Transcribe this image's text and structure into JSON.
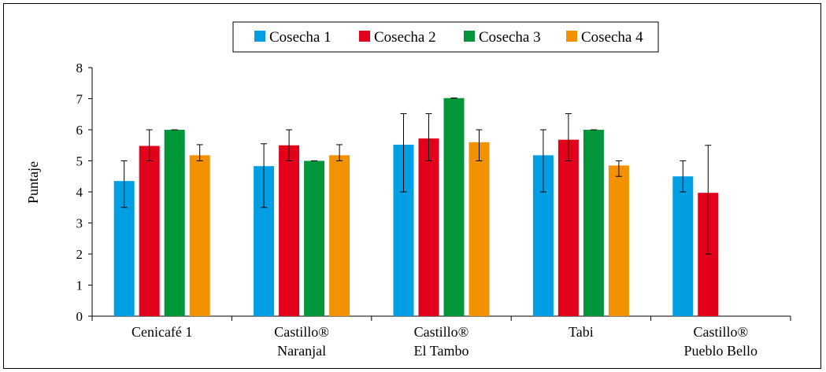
{
  "chart_data": {
    "type": "bar",
    "ylabel": "Puntaje",
    "xlabel": "",
    "ylim": [
      0,
      8
    ],
    "yticks": [
      0,
      1,
      2,
      3,
      4,
      5,
      6,
      7,
      8
    ],
    "grid": false,
    "legend_position": "top",
    "categories": [
      [
        "Cenicafé 1"
      ],
      [
        "Castillo®",
        "Naranjal"
      ],
      [
        "Castillo®",
        "El Tambo"
      ],
      [
        "Tabi"
      ],
      [
        "Castillo®",
        "Pueblo Bello"
      ]
    ],
    "series": [
      {
        "name": "Cosecha 1",
        "color": "#009fe3",
        "values": [
          4.35,
          4.83,
          5.52,
          5.18,
          4.5
        ],
        "error_low": [
          3.5,
          3.5,
          4.0,
          4.0,
          4.0
        ],
        "error_high": [
          5.0,
          5.55,
          6.52,
          6.0,
          5.0
        ]
      },
      {
        "name": "Cosecha 2",
        "color": "#e3001b",
        "values": [
          5.48,
          5.5,
          5.72,
          5.68,
          3.97
        ],
        "error_low": [
          5.0,
          5.0,
          5.0,
          5.0,
          2.0
        ],
        "error_high": [
          6.0,
          6.0,
          6.52,
          6.52,
          5.5
        ]
      },
      {
        "name": "Cosecha 3",
        "color": "#009639",
        "values": [
          6.0,
          5.0,
          7.02,
          6.0,
          null
        ],
        "error_low": [
          6.0,
          5.0,
          7.02,
          6.0,
          null
        ],
        "error_high": [
          6.0,
          5.0,
          7.02,
          6.0,
          null
        ]
      },
      {
        "name": "Cosecha 4",
        "color": "#f39200",
        "values": [
          5.18,
          5.18,
          5.6,
          4.85,
          null
        ],
        "error_low": [
          5.0,
          5.0,
          5.0,
          4.5,
          null
        ],
        "error_high": [
          5.52,
          5.52,
          6.0,
          5.0,
          null
        ]
      }
    ]
  }
}
